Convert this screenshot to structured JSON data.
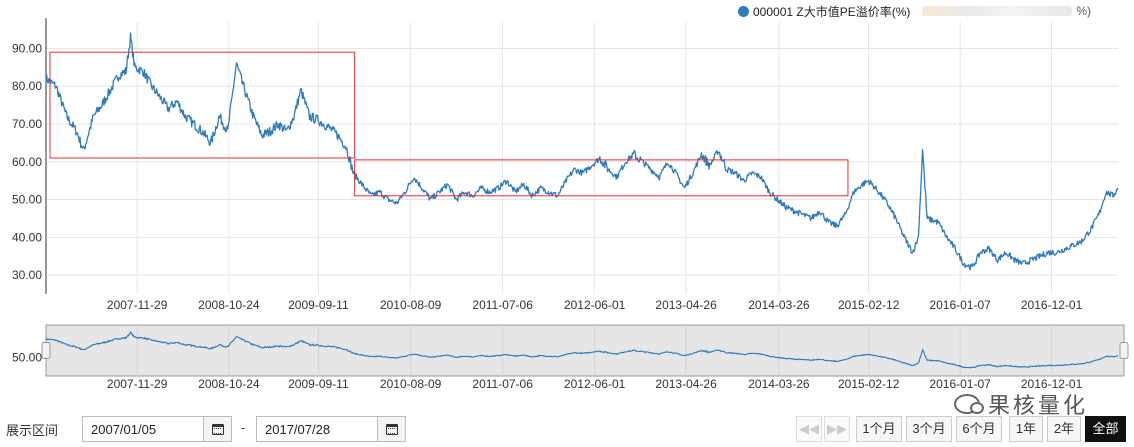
{
  "legend": {
    "series_label": "000001 Z大市值PE溢价率(%)",
    "tail": "%)",
    "color": "#2f7ab8"
  },
  "chart_data": {
    "type": "line",
    "x_type": "date",
    "x_range": [
      "2007-01-05",
      "2017-07-28"
    ],
    "y_ticks": [
      "30.00",
      "40.00",
      "50.00",
      "60.00",
      "70.00",
      "80.00",
      "90.00"
    ],
    "ylim": [
      25,
      97
    ],
    "x_ticks": [
      "2007-11-29",
      "2008-10-24",
      "2009-09-11",
      "2010-08-09",
      "2011-07-06",
      "2012-06-01",
      "2013-04-26",
      "2014-03-26",
      "2015-02-12",
      "2016-01-07",
      "2016-12-01"
    ],
    "grid": true,
    "line_color": "#2f7ab8",
    "series": [
      {
        "points": [
          [
            "2007-01-05",
            82
          ],
          [
            "2007-02-10",
            80
          ],
          [
            "2007-03-20",
            72
          ],
          [
            "2007-04-25",
            68
          ],
          [
            "2007-05-20",
            63
          ],
          [
            "2007-06-25",
            72
          ],
          [
            "2007-07-25",
            75
          ],
          [
            "2007-08-25",
            79
          ],
          [
            "2007-09-25",
            83
          ],
          [
            "2007-10-20",
            84
          ],
          [
            "2007-11-05",
            93
          ],
          [
            "2007-11-20",
            85
          ],
          [
            "2007-12-20",
            84
          ],
          [
            "2008-01-20",
            80
          ],
          [
            "2008-02-20",
            77
          ],
          [
            "2008-03-20",
            74
          ],
          [
            "2008-04-20",
            76
          ],
          [
            "2008-05-20",
            72
          ],
          [
            "2008-06-20",
            70
          ],
          [
            "2008-07-20",
            68
          ],
          [
            "2008-08-20",
            65
          ],
          [
            "2008-09-20",
            72
          ],
          [
            "2008-10-20",
            68
          ],
          [
            "2008-11-20",
            86
          ],
          [
            "2008-12-15",
            80
          ],
          [
            "2009-01-20",
            72
          ],
          [
            "2009-02-20",
            67
          ],
          [
            "2009-03-20",
            68
          ],
          [
            "2009-04-20",
            70
          ],
          [
            "2009-05-20",
            68
          ],
          [
            "2009-06-15",
            72
          ],
          [
            "2009-07-10",
            79
          ],
          [
            "2009-08-10",
            72
          ],
          [
            "2009-09-11",
            71
          ],
          [
            "2009-10-20",
            69
          ],
          [
            "2009-11-20",
            67
          ],
          [
            "2009-12-20",
            64
          ],
          [
            "2010-01-15",
            57
          ],
          [
            "2010-02-15",
            54
          ],
          [
            "2010-03-20",
            51
          ],
          [
            "2010-04-20",
            52
          ],
          [
            "2010-05-20",
            50
          ],
          [
            "2010-06-20",
            49
          ],
          [
            "2010-07-20",
            52
          ],
          [
            "2010-08-20",
            56
          ],
          [
            "2010-09-20",
            53
          ],
          [
            "2010-10-20",
            50
          ],
          [
            "2010-11-20",
            52
          ],
          [
            "2010-12-20",
            54
          ],
          [
            "2011-01-20",
            50
          ],
          [
            "2011-02-20",
            52
          ],
          [
            "2011-03-20",
            51
          ],
          [
            "2011-04-20",
            53
          ],
          [
            "2011-05-20",
            52
          ],
          [
            "2011-06-20",
            53
          ],
          [
            "2011-07-20",
            55
          ],
          [
            "2011-08-20",
            52
          ],
          [
            "2011-09-20",
            54
          ],
          [
            "2011-10-20",
            51
          ],
          [
            "2011-11-20",
            53
          ],
          [
            "2011-12-20",
            52
          ],
          [
            "2012-01-20",
            51
          ],
          [
            "2012-02-20",
            55
          ],
          [
            "2012-03-20",
            58
          ],
          [
            "2012-04-20",
            57
          ],
          [
            "2012-05-20",
            59
          ],
          [
            "2012-06-20",
            61
          ],
          [
            "2012-07-20",
            58
          ],
          [
            "2012-08-20",
            56
          ],
          [
            "2012-09-20",
            60
          ],
          [
            "2012-10-20",
            62
          ],
          [
            "2012-11-20",
            60
          ],
          [
            "2012-12-20",
            58
          ],
          [
            "2013-01-20",
            56
          ],
          [
            "2013-02-20",
            60
          ],
          [
            "2013-03-20",
            57
          ],
          [
            "2013-04-20",
            53
          ],
          [
            "2013-05-20",
            57
          ],
          [
            "2013-06-20",
            62
          ],
          [
            "2013-07-20",
            59
          ],
          [
            "2013-08-20",
            63
          ],
          [
            "2013-09-20",
            58
          ],
          [
            "2013-10-20",
            57
          ],
          [
            "2013-11-20",
            55
          ],
          [
            "2013-12-20",
            57
          ],
          [
            "2014-01-20",
            56
          ],
          [
            "2014-02-20",
            52
          ],
          [
            "2014-03-20",
            50
          ],
          [
            "2014-04-20",
            48
          ],
          [
            "2014-05-20",
            47
          ],
          [
            "2014-06-20",
            46
          ],
          [
            "2014-07-20",
            45
          ],
          [
            "2014-08-20",
            47
          ],
          [
            "2014-09-20",
            44
          ],
          [
            "2014-10-20",
            43
          ],
          [
            "2014-11-20",
            46
          ],
          [
            "2014-12-20",
            52
          ],
          [
            "2015-01-20",
            54
          ],
          [
            "2015-02-12",
            55
          ],
          [
            "2015-03-20",
            52
          ],
          [
            "2015-04-20",
            49
          ],
          [
            "2015-05-20",
            45
          ],
          [
            "2015-06-20",
            40
          ],
          [
            "2015-07-20",
            36
          ],
          [
            "2015-08-10",
            40
          ],
          [
            "2015-08-25",
            63
          ],
          [
            "2015-09-10",
            45
          ],
          [
            "2015-10-20",
            44
          ],
          [
            "2015-11-20",
            40
          ],
          [
            "2015-12-20",
            37
          ],
          [
            "2016-01-20",
            33
          ],
          [
            "2016-02-20",
            32
          ],
          [
            "2016-03-20",
            36
          ],
          [
            "2016-04-20",
            37
          ],
          [
            "2016-05-20",
            34
          ],
          [
            "2016-06-20",
            36
          ],
          [
            "2016-07-20",
            34
          ],
          [
            "2016-08-20",
            33
          ],
          [
            "2016-09-20",
            34
          ],
          [
            "2016-10-20",
            35
          ],
          [
            "2016-11-20",
            36
          ],
          [
            "2016-12-20",
            36
          ],
          [
            "2017-01-20",
            37
          ],
          [
            "2017-02-20",
            38
          ],
          [
            "2017-03-20",
            39
          ],
          [
            "2017-04-20",
            42
          ],
          [
            "2017-05-20",
            46
          ],
          [
            "2017-06-15",
            52
          ],
          [
            "2017-07-10",
            51
          ],
          [
            "2017-07-28",
            53
          ]
        ]
      }
    ],
    "annotations": [
      {
        "type": "rect",
        "color": "#e03030",
        "x": [
          "2007-01-05",
          "2010-01-05"
        ],
        "y": [
          61,
          89
        ]
      },
      {
        "type": "rect",
        "color": "#e03030",
        "x": [
          "2010-01-05",
          "2014-11-15"
        ],
        "y": [
          51,
          60.5
        ]
      }
    ],
    "navigator": {
      "y_tick": "50.00",
      "fill": "#e6e6e6",
      "handles": true
    }
  },
  "controls": {
    "range_label": "展示区间",
    "start_date": "2007/01/05",
    "end_date": "2017/07/28",
    "separator": "-",
    "buttons": [
      "1个月",
      "3个月",
      "6个月",
      "1年",
      "2年",
      "全部"
    ],
    "active_button": "全部"
  },
  "watermark": {
    "text": "果核量化"
  }
}
